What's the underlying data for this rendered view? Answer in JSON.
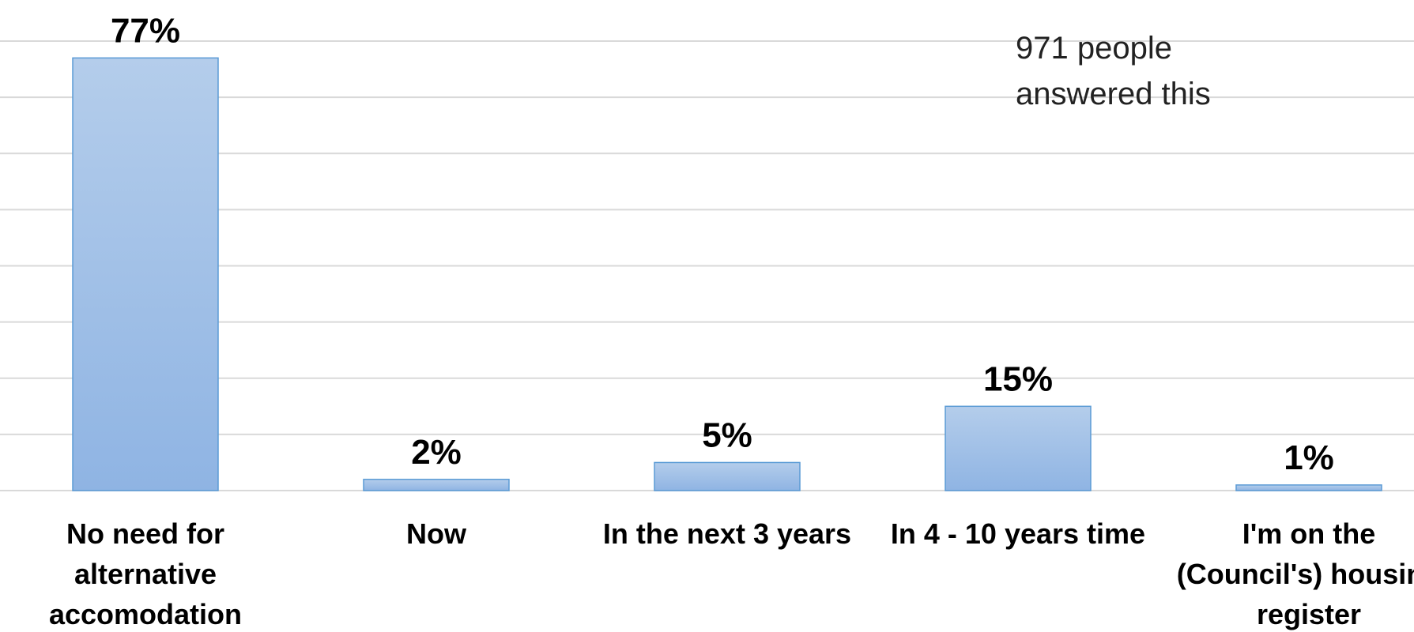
{
  "chart_data": {
    "type": "bar",
    "categories": [
      [
        "No need for",
        "alternative",
        "accomodation"
      ],
      [
        "Now"
      ],
      [
        "In the next 3 years"
      ],
      [
        "In 4 - 10 years time"
      ],
      [
        "I'm on the",
        "(Council's) housing",
        "register"
      ]
    ],
    "values": [
      77,
      2,
      5,
      15,
      1
    ],
    "data_labels": [
      "77%",
      "2%",
      "5%",
      "15%",
      "1%"
    ],
    "ylim": [
      0,
      80
    ],
    "gridlines": [
      10,
      20,
      30,
      40,
      50,
      60,
      70,
      80
    ],
    "grid": true,
    "bar_color_top": "#b4cdeb",
    "bar_color_bottom": "#8fb4e3",
    "bar_border": "#5b9bd5",
    "annotation": [
      "971 people",
      "answered this"
    ]
  }
}
